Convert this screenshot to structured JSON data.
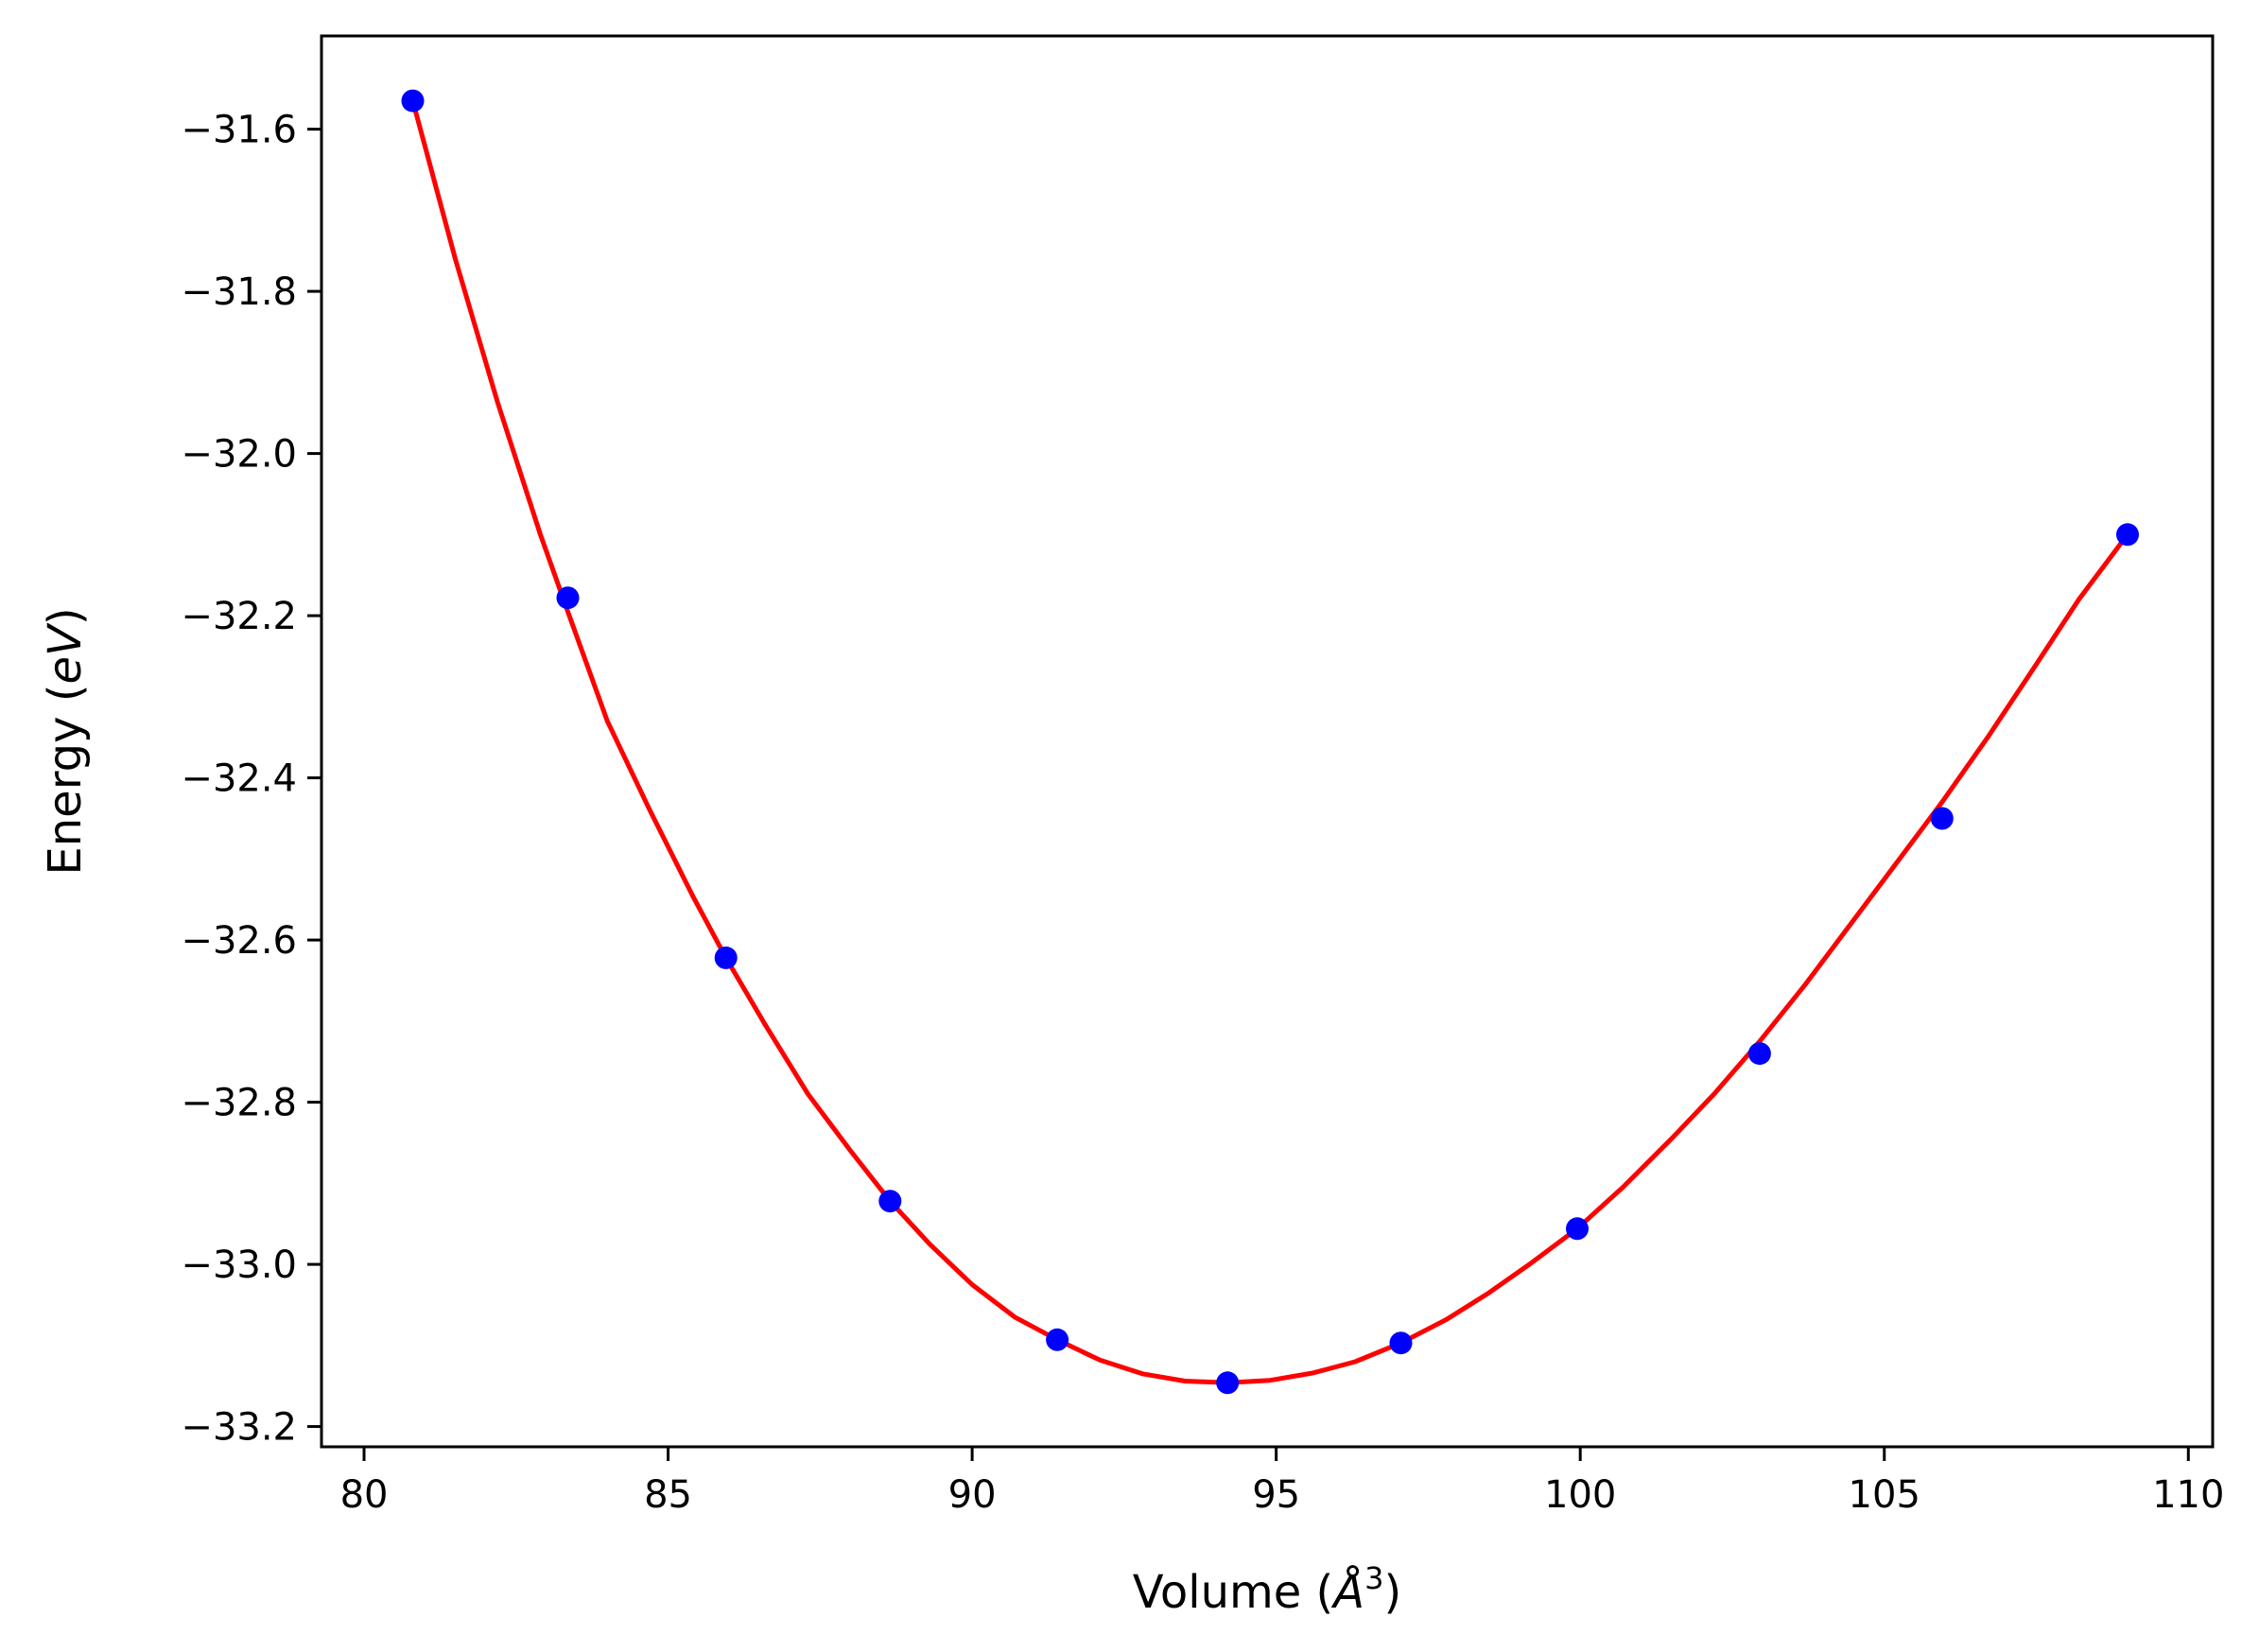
{
  "chart_data": {
    "type": "line",
    "title": "",
    "xlabel": "Volume (",
    "xlabel_unit": "Å",
    "xlabel_sup": "3",
    "xlabel_end": ")",
    "ylabel": "Energy (",
    "ylabel_unit": "eV",
    "ylabel_end": ")",
    "xlim": [
      79.3,
      110.4
    ],
    "ylim": [
      -33.225,
      -31.485
    ],
    "xticks": [
      80,
      85,
      90,
      95,
      100,
      105,
      110
    ],
    "xtick_labels": [
      "80",
      "85",
      "90",
      "95",
      "100",
      "105",
      "110"
    ],
    "yticks": [
      -31.6,
      -31.8,
      -32.0,
      -32.2,
      -32.4,
      -32.6,
      -32.8,
      -33.0,
      -33.2
    ],
    "ytick_labels": [
      "−31.6",
      "−31.8",
      "−32.0",
      "−32.2",
      "−32.4",
      "−32.6",
      "−32.8",
      "−33.0",
      "−33.2"
    ],
    "grid": false,
    "series": [
      {
        "style": "points",
        "color": "#0000ff",
        "x": [
          80.8,
          83.35,
          85.95,
          88.65,
          91.4,
          94.2,
          97.05,
          99.95,
          102.95,
          105.95,
          109.0
        ],
        "y": [
          -31.565,
          -32.178,
          -32.622,
          -32.922,
          -33.093,
          -33.146,
          -33.097,
          -32.956,
          -32.74,
          -32.45,
          -32.1
        ]
      },
      {
        "style": "line",
        "color": "#ff0000",
        "x": [
          80.8,
          81.5,
          82.2,
          82.9,
          83.35,
          84.0,
          84.7,
          85.4,
          85.95,
          86.6,
          87.3,
          88.0,
          88.65,
          89.3,
          90.0,
          90.7,
          91.4,
          92.1,
          92.8,
          93.5,
          94.2,
          94.9,
          95.6,
          96.3,
          97.05,
          97.8,
          98.5,
          99.2,
          99.95,
          100.7,
          101.5,
          102.2,
          102.95,
          103.7,
          104.5,
          105.2,
          105.95,
          106.7,
          107.5,
          108.2,
          109.0
        ],
        "y": [
          -31.565,
          -31.76,
          -31.938,
          -32.1,
          -32.195,
          -32.33,
          -32.44,
          -32.545,
          -32.622,
          -32.705,
          -32.79,
          -32.86,
          -32.922,
          -32.975,
          -33.025,
          -33.065,
          -33.093,
          -33.118,
          -33.135,
          -33.144,
          -33.146,
          -33.143,
          -33.134,
          -33.12,
          -33.097,
          -33.068,
          -33.035,
          -32.998,
          -32.956,
          -32.905,
          -32.845,
          -32.79,
          -32.725,
          -32.655,
          -32.575,
          -32.505,
          -32.43,
          -32.35,
          -32.26,
          -32.18,
          -32.1
        ]
      }
    ]
  }
}
